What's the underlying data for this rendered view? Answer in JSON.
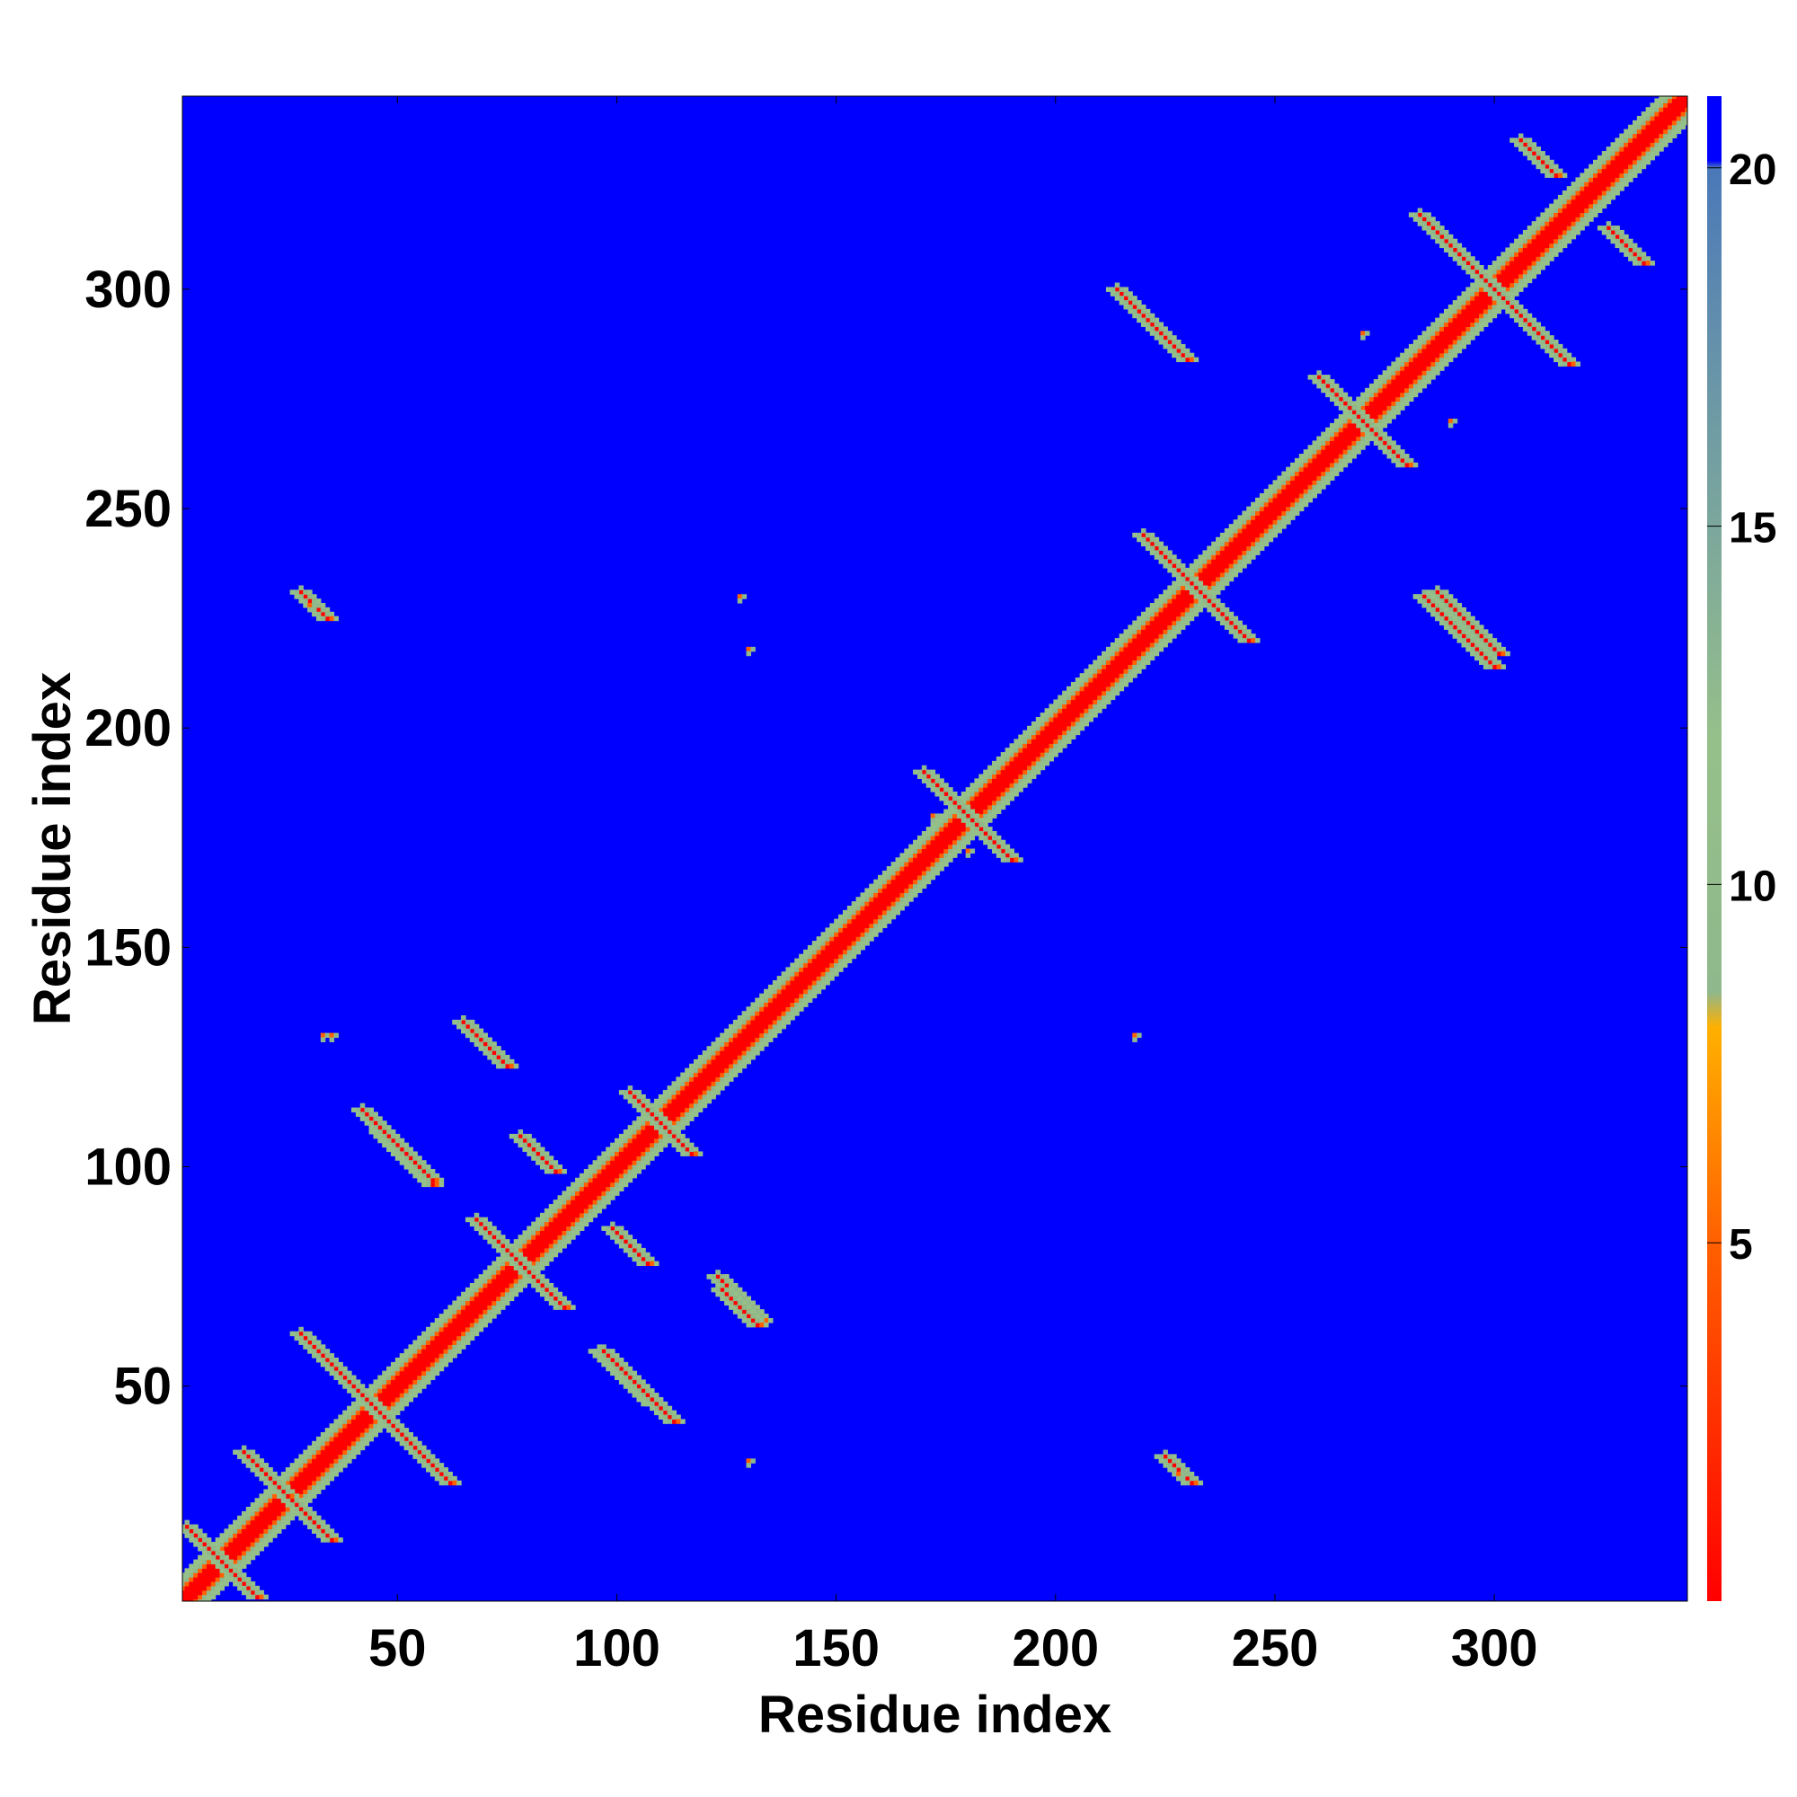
{
  "chart_data": {
    "type": "heatmap",
    "title": "",
    "xlabel": "Residue index",
    "ylabel": "Residue index",
    "xlim": [
      1,
      344
    ],
    "ylim": [
      1,
      344
    ],
    "x_ticks": [
      50,
      100,
      150,
      200,
      250,
      300
    ],
    "y_ticks": [
      50,
      100,
      150,
      200,
      250,
      300
    ],
    "x_tick_labels": [
      "50",
      "100",
      "150",
      "200",
      "250",
      "300"
    ],
    "y_tick_labels": [
      "50",
      "100",
      "150",
      "200",
      "250",
      "300"
    ],
    "colorbar": {
      "range": [
        0,
        21
      ],
      "ticks": [
        5,
        10,
        15,
        20
      ],
      "tick_labels": [
        "5",
        "10",
        "15",
        "20"
      ],
      "stops": [
        {
          "value": 0,
          "color": "#ff0000"
        },
        {
          "value": 5,
          "color": "#ff6000"
        },
        {
          "value": 8,
          "color": "#ffb000"
        },
        {
          "value": 8.5,
          "color": "#8fb88c"
        },
        {
          "value": 12,
          "color": "#96c08a"
        },
        {
          "value": 17,
          "color": "#6a96a8"
        },
        {
          "value": 20,
          "color": "#4a78b8"
        },
        {
          "value": 20.1,
          "color": "#0000ff"
        },
        {
          "value": 21,
          "color": "#0000ff"
        }
      ],
      "background_color": "#0000ff"
    },
    "diagonal_band": {
      "start": 1,
      "end": 344
    },
    "contact_segments": [
      {
        "type": "anti",
        "center": [
          10,
          10
        ],
        "half_length": 8
      },
      {
        "type": "anti",
        "center": [
          25,
          25
        ],
        "half_length": 8
      },
      {
        "type": "anti",
        "center": [
          45,
          45
        ],
        "half_length": 17
      },
      {
        "type": "anti",
        "center": [
          78,
          78
        ],
        "half_length": 10
      },
      {
        "type": "anti",
        "center": [
          110,
          110
        ],
        "half_length": 7
      },
      {
        "type": "anti",
        "center": [
          180,
          180
        ],
        "half_length": 10
      },
      {
        "type": "anti",
        "center": [
          232,
          232
        ],
        "half_length": 12
      },
      {
        "type": "anti",
        "center": [
          270,
          270
        ],
        "half_length": 10
      },
      {
        "type": "anti",
        "center": [
          300,
          300
        ],
        "half_length": 17
      },
      {
        "type": "anti",
        "center": [
          30,
          20
        ],
        "half_length": 5
      },
      {
        "type": "anti",
        "center": [
          20,
          30
        ],
        "half_length": 5
      },
      {
        "type": "anti",
        "center": [
          52,
          102
        ],
        "half_length": 6
      },
      {
        "type": "anti",
        "center": [
          102,
          52
        ],
        "half_length": 6
      },
      {
        "type": "anti",
        "center": [
          70,
          128
        ],
        "half_length": 5
      },
      {
        "type": "anti",
        "center": [
          128,
          70
        ],
        "half_length": 5
      },
      {
        "type": "anti",
        "center": [
          82,
          103
        ],
        "half_length": 4
      },
      {
        "type": "anti",
        "center": [
          103,
          82
        ],
        "half_length": 4
      },
      {
        "type": "anti",
        "center": [
          105,
          50
        ],
        "half_length": 8
      },
      {
        "type": "anti",
        "center": [
          50,
          105
        ],
        "half_length": 8
      },
      {
        "type": "anti",
        "center": [
          128,
          70
        ],
        "half_length": 5
      },
      {
        "type": "anti",
        "center": [
          70,
          128
        ],
        "half_length": 5
      },
      {
        "type": "anti",
        "center": [
          222,
          292
        ],
        "half_length": 8
      },
      {
        "type": "anti",
        "center": [
          292,
          222
        ],
        "half_length": 8
      },
      {
        "type": "anti",
        "center": [
          292,
          222
        ],
        "half_length": 8
      },
      {
        "type": "anti",
        "center": [
          310,
          330
        ],
        "half_length": 4
      },
      {
        "type": "anti",
        "center": [
          330,
          310
        ],
        "half_length": 4
      },
      {
        "type": "anti",
        "center": [
          228,
          31
        ],
        "half_length": 3
      },
      {
        "type": "anti",
        "center": [
          31,
          228
        ],
        "half_length": 3
      },
      {
        "type": "anti",
        "center": [
          294,
          224
        ],
        "half_length": 7
      },
      {
        "type": "anti",
        "center": [
          128,
          68
        ],
        "half_length": 4
      }
    ],
    "contact_spots": [
      [
        30,
        228
      ],
      [
        228,
        30
      ],
      [
        130,
        33
      ],
      [
        33,
        130
      ],
      [
        218,
        130
      ],
      [
        130,
        218
      ],
      [
        172,
        180
      ],
      [
        180,
        172
      ],
      [
        35,
        130
      ],
      [
        128,
        230
      ],
      [
        270,
        290
      ],
      [
        290,
        270
      ]
    ]
  }
}
